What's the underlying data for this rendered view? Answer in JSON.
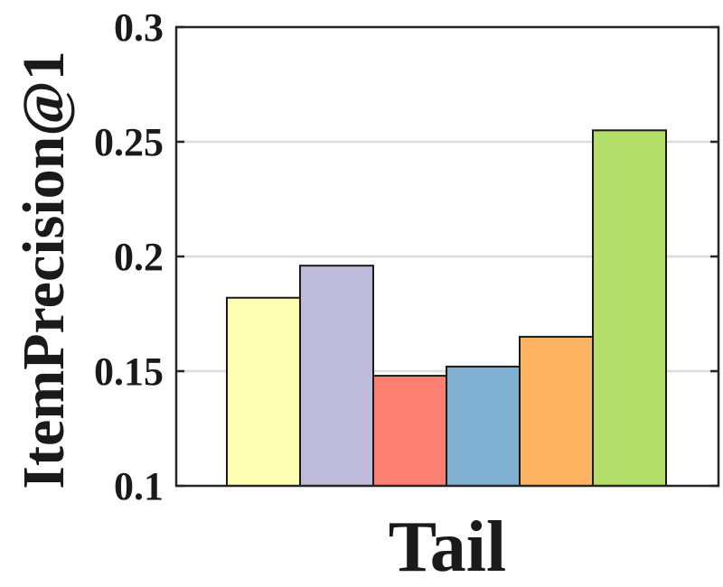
{
  "chart_data": {
    "type": "bar",
    "title": "",
    "xlabel": "Tail",
    "ylabel": "ItemPrecision@1",
    "ylim": [
      0.1,
      0.3
    ],
    "yticks": [
      0.1,
      0.15,
      0.2,
      0.25,
      0.3
    ],
    "ytick_labels": [
      "0.1",
      "0.15",
      "0.2",
      "0.25",
      "0.3"
    ],
    "grid": true,
    "legend": "none",
    "categories": [
      "Tail"
    ],
    "series": [
      {
        "values": [
          0.182
        ],
        "color": "#ffffb3"
      },
      {
        "values": [
          0.196
        ],
        "color": "#bebada"
      },
      {
        "values": [
          0.148
        ],
        "color": "#fb8072"
      },
      {
        "values": [
          0.152
        ],
        "color": "#80b1d3"
      },
      {
        "values": [
          0.165
        ],
        "color": "#fdb462"
      },
      {
        "values": [
          0.255
        ],
        "color": "#b3de69"
      }
    ]
  }
}
